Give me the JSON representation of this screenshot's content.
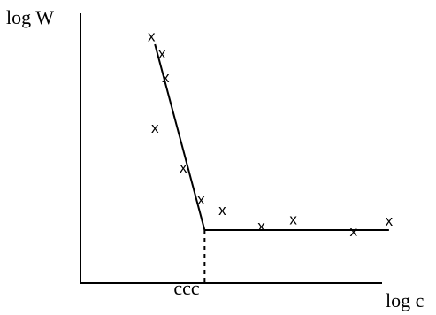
{
  "chart_data": {
    "type": "scatter",
    "xlabel": "log c",
    "ylabel": "log W",
    "x_tick_labels": [
      "ccc"
    ],
    "marker_symbol": "x",
    "points": [
      {
        "x": 1.0,
        "y": 9.3
      },
      {
        "x": 1.15,
        "y": 8.65
      },
      {
        "x": 1.2,
        "y": 7.75
      },
      {
        "x": 1.05,
        "y": 5.85
      },
      {
        "x": 1.45,
        "y": 4.35
      },
      {
        "x": 1.7,
        "y": 3.15
      },
      {
        "x": 2.0,
        "y": 2.75
      },
      {
        "x": 2.55,
        "y": 2.15
      },
      {
        "x": 3.0,
        "y": 2.4
      },
      {
        "x": 3.85,
        "y": 1.95
      },
      {
        "x": 4.35,
        "y": 2.35
      }
    ],
    "fit_lines": [
      {
        "from": {
          "x": 1.05,
          "y": 9.0
        },
        "to": {
          "x": 1.75,
          "y": 2.0
        }
      },
      {
        "from": {
          "x": 1.75,
          "y": 2.0
        },
        "to": {
          "x": 4.35,
          "y": 2.0
        }
      }
    ],
    "ccc_x": 1.75,
    "xlim": [
      0,
      5
    ],
    "ylim": [
      0,
      10
    ],
    "grid": false,
    "color": "#000000"
  }
}
